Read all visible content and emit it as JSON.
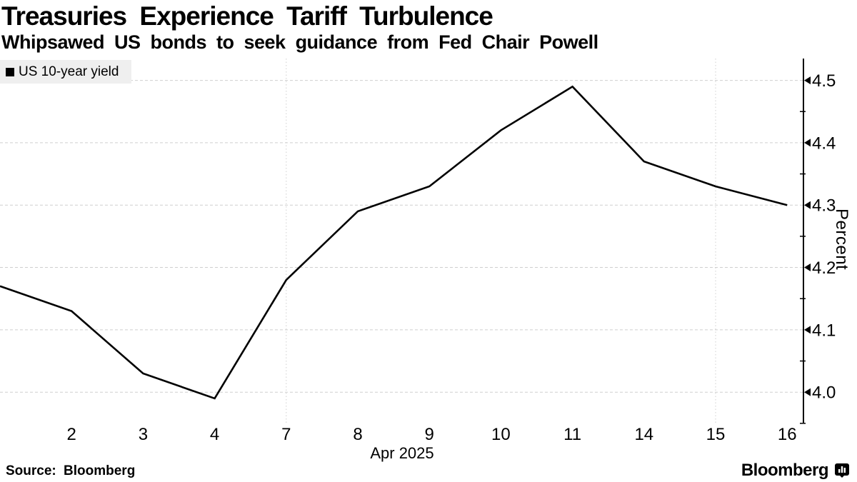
{
  "header": {
    "title": "Treasuries Experience Tariff Turbulence",
    "subtitle": "Whipsawed US bonds to seek guidance from Fed Chair Powell"
  },
  "legend": {
    "label": "US 10-year yield",
    "swatch_color": "#000000"
  },
  "footer": {
    "source": "Source: Bloomberg",
    "brand": "Bloomberg",
    "brand_icon": "bloomberg-bars-icon"
  },
  "colors": {
    "line": "#000000",
    "axis": "#000000",
    "grid": "#cfcfcf",
    "legend_bg": "#efefef",
    "background": "#ffffff"
  },
  "chart_data": {
    "type": "line",
    "title": "Treasuries Experience Tariff Turbulence",
    "subtitle": "Whipsawed US bonds to seek guidance from Fed Chair Powell",
    "series": [
      {
        "name": "US 10-year yield",
        "x": [
          "1",
          "2",
          "3",
          "4",
          "7",
          "8",
          "9",
          "10",
          "11",
          "14",
          "15",
          "16"
        ],
        "values": [
          4.17,
          4.13,
          4.03,
          3.99,
          4.18,
          4.29,
          4.33,
          4.42,
          4.49,
          4.37,
          4.33,
          4.3
        ]
      }
    ],
    "x_tick_labels": [
      "2",
      "3",
      "4",
      "7",
      "8",
      "9",
      "10",
      "11",
      "14",
      "15",
      "16"
    ],
    "x_axis_caption": "Apr 2025",
    "ylabel": "Percent",
    "yticks": [
      4.0,
      4.1,
      4.2,
      4.3,
      4.4,
      4.5
    ],
    "y_minor_ticks": [
      3.95,
      4.05,
      4.15,
      4.25,
      4.35,
      4.45
    ],
    "ylim": [
      3.951,
      4.535
    ],
    "x_gridlines": [
      "7",
      "15"
    ],
    "grid": "dashed-light",
    "legend_position": "top-left",
    "y_axis_position": "right"
  }
}
